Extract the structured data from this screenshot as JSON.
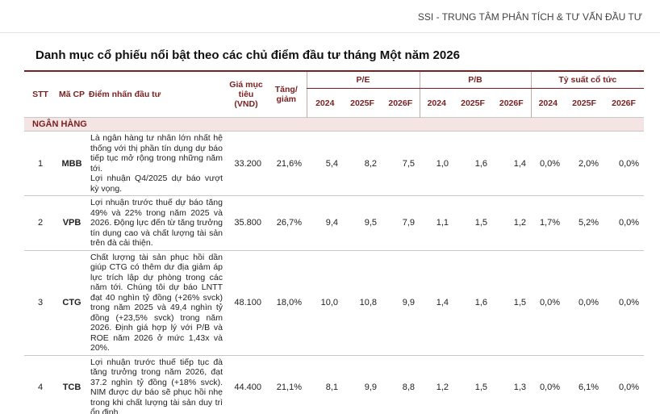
{
  "header": {
    "title": "SSI - TRUNG TÂM PHÂN TÍCH & TƯ VẤN ĐẦU TƯ"
  },
  "document": {
    "title": "Danh mục cổ phiếu nổi bật theo các chủ điểm đầu tư tháng Một năm 2026"
  },
  "table": {
    "columns": {
      "stt": "STT",
      "ticker": "Mã CP",
      "highlight": "Điểm nhấn đầu tư",
      "target": "Giá mục tiêu (VND)",
      "change": "Tăng/ giảm",
      "groups": [
        {
          "label": "P/E",
          "years": [
            "2024",
            "2025F",
            "2026F"
          ]
        },
        {
          "label": "P/B",
          "years": [
            "2024",
            "2025F",
            "2026F"
          ]
        },
        {
          "label": "Tỷ suất cổ tức",
          "years": [
            "2024",
            "2025F",
            "2026F"
          ]
        }
      ]
    },
    "section": "NGÂN HÀNG",
    "rows": [
      {
        "stt": "1",
        "ticker": "MBB",
        "paragraphs": [
          "Là ngân hàng tư nhân lớn nhất hệ thống với thị phần tín dụng dự báo tiếp tục mở rộng trong những năm tới.",
          "Lợi nhuận Q4/2025 dự báo vượt kỳ vọng."
        ],
        "target": "33.200",
        "change": "21,6%",
        "metrics": [
          [
            "5,4",
            "8,2",
            "7,5"
          ],
          [
            "1,0",
            "1,6",
            "1,4"
          ],
          [
            "0,0%",
            "2,0%",
            "0,0%"
          ]
        ]
      },
      {
        "stt": "2",
        "ticker": "VPB",
        "paragraphs": [
          "Lợi nhuận trước thuế dự báo tăng 49% và 22% trong năm 2025 và 2026. Động lực đến từ tăng trưởng tín dụng cao và chất lượng tài sản trên đà cải thiện."
        ],
        "target": "35.800",
        "change": "26,7%",
        "metrics": [
          [
            "9,4",
            "9,5",
            "7,9"
          ],
          [
            "1,1",
            "1,5",
            "1,2"
          ],
          [
            "1,7%",
            "5,2%",
            "0,0%"
          ]
        ]
      },
      {
        "stt": "3",
        "ticker": "CTG",
        "paragraphs": [
          "Chất lượng tài sản phục hồi dần giúp CTG có thêm dư địa giảm áp lực trích lập dự phòng trong các năm tới. Chúng tôi dự báo LNTT đạt 40 nghìn tỷ đồng (+26% svck) trong năm 2025 và 49,4 nghìn tỷ đồng (+23,5% svck) trong năm 2026. Định giá hợp lý với P/B và ROE năm 2026 ở mức 1,43x và 20%."
        ],
        "target": "48.100",
        "change": "18,0%",
        "metrics": [
          [
            "10,0",
            "10,8",
            "9,9"
          ],
          [
            "1,4",
            "1,6",
            "1,5"
          ],
          [
            "0,0%",
            "0,0%",
            "0,0%"
          ]
        ]
      },
      {
        "stt": "4",
        "ticker": "TCB",
        "paragraphs": [
          "Lợi nhuận trước thuế tiếp tục đà tăng trưởng trong năm 2026, đạt 37.2 nghìn tỷ đồng (+18% svck). NIM được dự báo sẽ phục hồi nhẹ trong khi chất lượng tài sản duy trì ổn định."
        ],
        "target": "44.400",
        "change": "21,1%",
        "metrics": [
          [
            "8,1",
            "9,9",
            "8,8"
          ],
          [
            "1,2",
            "1,5",
            "1,3"
          ],
          [
            "0,0%",
            "6,1%",
            "0,0%"
          ]
        ]
      }
    ]
  }
}
